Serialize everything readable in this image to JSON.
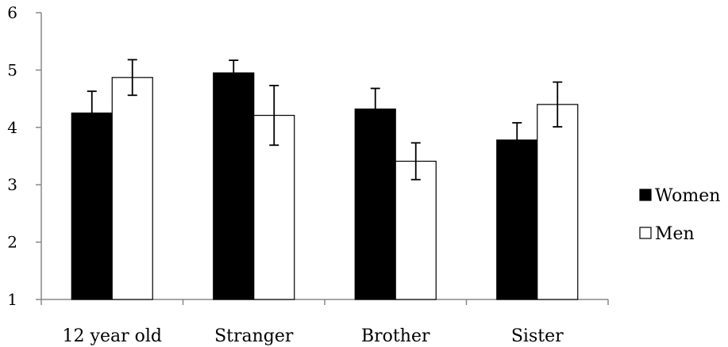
{
  "chart_data": {
    "type": "bar",
    "categories": [
      "12 year old",
      "Stranger",
      "Brother",
      "Sister"
    ],
    "series": [
      {
        "name": "Women",
        "values": [
          4.25,
          4.95,
          4.32,
          3.78
        ],
        "error": [
          0.38,
          0.22,
          0.36,
          0.3
        ],
        "fill": "#000000"
      },
      {
        "name": "Men",
        "values": [
          4.87,
          4.21,
          3.41,
          4.4
        ],
        "error": [
          0.31,
          0.52,
          0.32,
          0.39
        ],
        "fill": "#ffffff"
      }
    ],
    "yticks": [
      "1",
      "2",
      "3",
      "4",
      "5",
      "6"
    ],
    "ylim": [
      1,
      6
    ],
    "grid": false,
    "legend_position": "right",
    "title": "",
    "xlabel": "",
    "ylabel": ""
  }
}
